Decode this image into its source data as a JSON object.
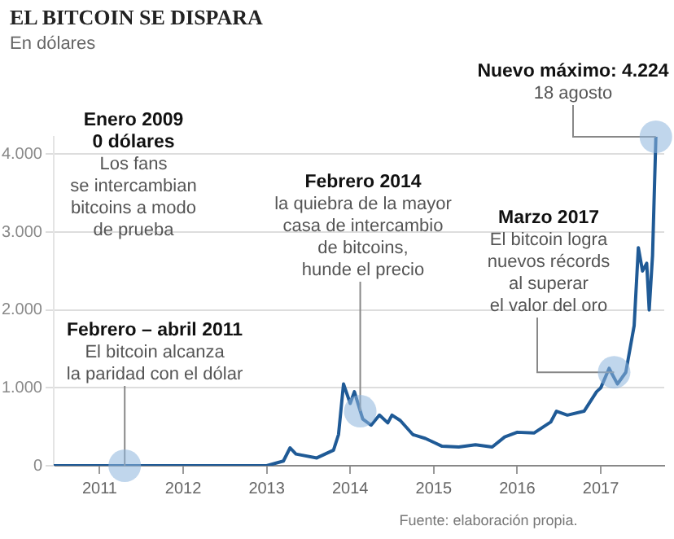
{
  "chart_data": {
    "type": "line",
    "title": "EL BITCOIN SE DISPARA",
    "subtitle": "En dólares",
    "x": [
      2010.45,
      2013.0,
      2013.2,
      2013.28,
      2013.35,
      2013.6,
      2013.8,
      2013.86,
      2013.92,
      2014.0,
      2014.05,
      2014.15,
      2014.25,
      2014.35,
      2014.45,
      2014.5,
      2014.6,
      2014.75,
      2014.9,
      2015.0,
      2015.1,
      2015.3,
      2015.5,
      2015.7,
      2015.85,
      2016.0,
      2016.2,
      2016.4,
      2016.47,
      2016.6,
      2016.8,
      2016.95,
      2017.0,
      2017.1,
      2017.2,
      2017.3,
      2017.4,
      2017.45,
      2017.5,
      2017.55,
      2017.58,
      2017.62,
      2017.66
    ],
    "series": [
      {
        "color": "#1f5a96",
        "values": [
          0,
          0,
          60,
          230,
          150,
          100,
          200,
          400,
          1050,
          800,
          950,
          600,
          520,
          650,
          550,
          650,
          580,
          400,
          350,
          300,
          250,
          240,
          270,
          240,
          370,
          430,
          420,
          560,
          700,
          650,
          700,
          950,
          1000,
          1250,
          1050,
          1200,
          1800,
          2800,
          2500,
          2600,
          2000,
          2700,
          4224
        ]
      }
    ],
    "xlim": [
      2010.45,
      2017.76
    ],
    "xticks": [
      2011,
      2012,
      2013,
      2014,
      2015,
      2016,
      2017
    ],
    "ylim": [
      0,
      4224
    ],
    "yticks": [
      0,
      {
        "value": 1000,
        "label": "1.000"
      },
      {
        "value": 2000,
        "label": "2.000"
      },
      {
        "value": 3000,
        "label": "3.000"
      },
      {
        "value": 4000,
        "label": "4.000"
      }
    ],
    "grid": "y",
    "legend": false,
    "marker": "none",
    "line_style": "solid",
    "annotations": [
      "Enero 2009\n0 dólares\nLos fans\nse intercambian\nbitcoins a modo\nde prueba",
      {
        "text": "Febrero – abril 2011\nEl bitcoin alcanza\nla paridad con el dólar",
        "x": 2011.3,
        "y": 0
      },
      {
        "text": "Febrero 2014\nla quiebra de la mayor\ncasa de intercambio\nde bitcoins,\nhunde el precio",
        "x": 2014.12,
        "y": 700
      },
      {
        "text": "Marzo 2017\nEl bitcoin logra\nnuevos récords\nal superar\nel valor del oro",
        "x": 2017.16,
        "y": 1200
      },
      {
        "text": "Nuevo máximo: 4.224\n18 agosto",
        "x": 2017.66,
        "y": 4224
      },
      "Fuente: elaboración propia."
    ]
  }
}
